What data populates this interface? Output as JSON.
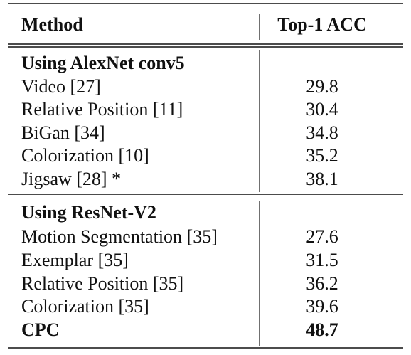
{
  "table": {
    "header": [
      "Method",
      "Top-1 ACC"
    ],
    "sections": [
      {
        "title": "Using AlexNet conv5",
        "rows": [
          [
            "Video [27]",
            29.8
          ],
          [
            "Relative Position [11]",
            30.4
          ],
          [
            "BiGan [34]",
            34.8
          ],
          [
            "Colorization [10]",
            35.2
          ],
          [
            "Jigsaw [28] *",
            38.1
          ]
        ]
      },
      {
        "title": "Using ResNet-V2",
        "rows": [
          [
            "Motion Segmentation [35]",
            27.6
          ],
          [
            "Exemplar [35]",
            31.5
          ],
          [
            "Relative Position [35]",
            36.2
          ],
          [
            "Colorization [35]",
            39.6
          ],
          [
            "CPC",
            48.7
          ]
        ]
      }
    ]
  }
}
